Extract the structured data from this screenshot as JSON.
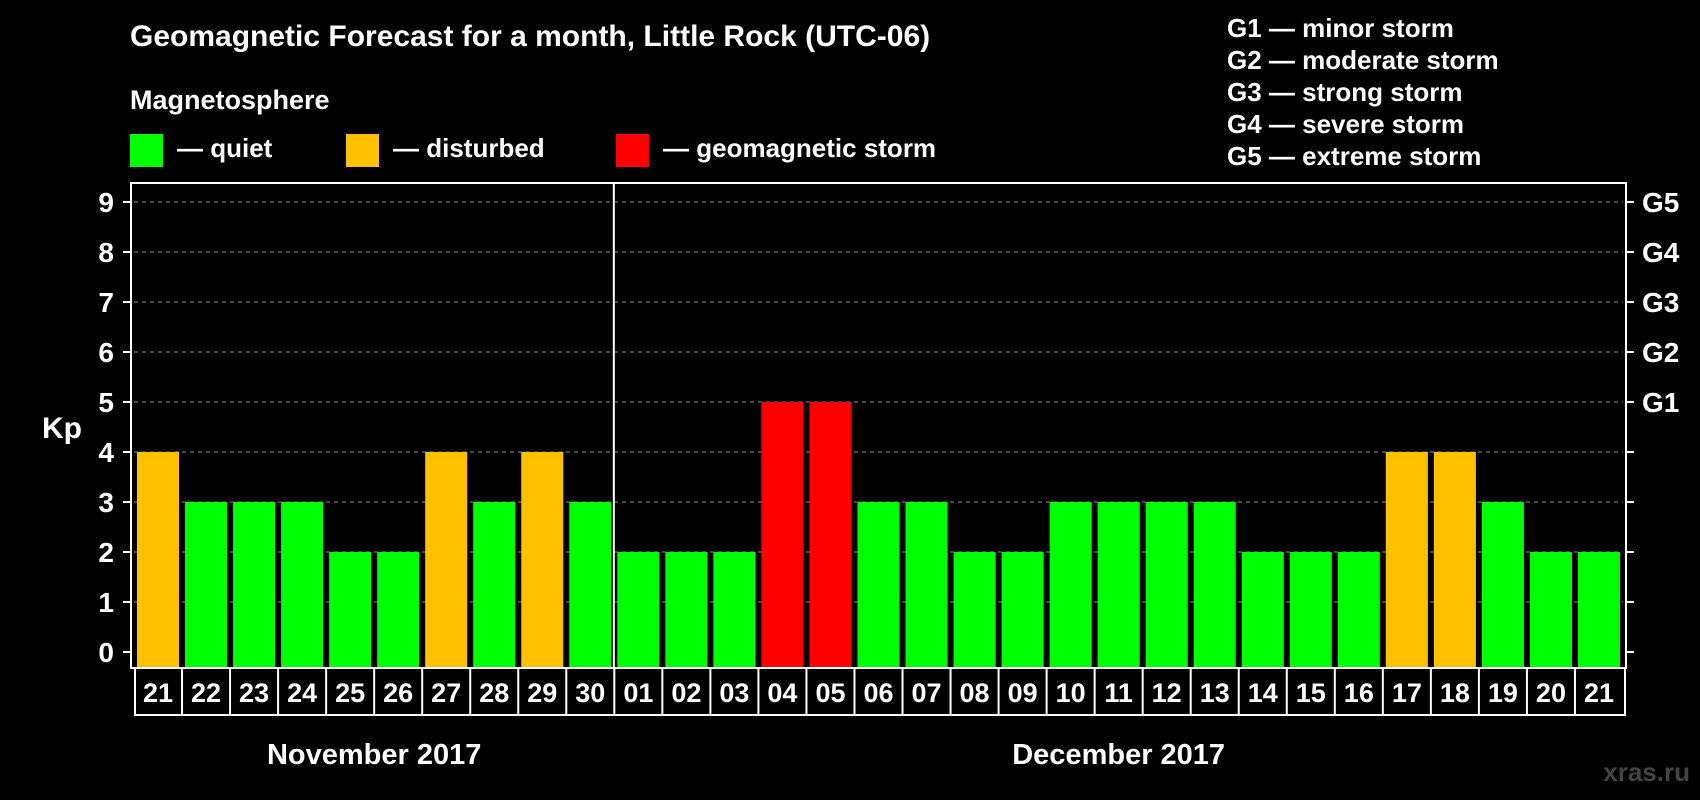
{
  "title": "Geomagnetic Forecast for a month, Little Rock (UTC-06)",
  "magnetosphere_label": "Magnetosphere",
  "legend": [
    {
      "label": "— quiet",
      "color": "#00ff00"
    },
    {
      "label": "— disturbed",
      "color": "#ffc000"
    },
    {
      "label": "— geomagnetic storm",
      "color": "#ff0000"
    }
  ],
  "storm_levels": [
    "G1 — minor storm",
    "G2 — moderate storm",
    "G3 — strong storm",
    "G4 — severe storm",
    "G5 — extreme storm"
  ],
  "watermark": "xras.ru",
  "chart_data": {
    "type": "bar",
    "title": "Geomagnetic Forecast for a month, Little Rock (UTC-06)",
    "ylabel": "Kp",
    "xlabel": "",
    "ylim": [
      0,
      9
    ],
    "y_ticks": [
      0,
      1,
      2,
      3,
      4,
      5,
      6,
      7,
      8,
      9
    ],
    "right_axis_labels": [
      {
        "kp": 5,
        "label": "G1"
      },
      {
        "kp": 6,
        "label": "G2"
      },
      {
        "kp": 7,
        "label": "G3"
      },
      {
        "kp": 8,
        "label": "G4"
      },
      {
        "kp": 9,
        "label": "G5"
      }
    ],
    "categories": [
      "21",
      "22",
      "23",
      "24",
      "25",
      "26",
      "27",
      "28",
      "29",
      "30",
      "01",
      "02",
      "03",
      "04",
      "05",
      "06",
      "07",
      "08",
      "09",
      "10",
      "11",
      "12",
      "13",
      "14",
      "15",
      "16",
      "17",
      "18",
      "19",
      "20",
      "21"
    ],
    "values": [
      4,
      3,
      3,
      3,
      2,
      2,
      4,
      3,
      4,
      3,
      2,
      2,
      2,
      5,
      5,
      3,
      3,
      2,
      2,
      3,
      3,
      3,
      3,
      2,
      2,
      2,
      4,
      4,
      3,
      2,
      2
    ],
    "months": [
      {
        "label": "November 2017",
        "start_index": 0,
        "end_index": 9
      },
      {
        "label": "December 2017",
        "start_index": 10,
        "end_index": 30
      }
    ],
    "color_scale": {
      "quiet": "#00ff00",
      "disturbed": "#ffc000",
      "storm": "#ff0000"
    },
    "grid": true
  }
}
